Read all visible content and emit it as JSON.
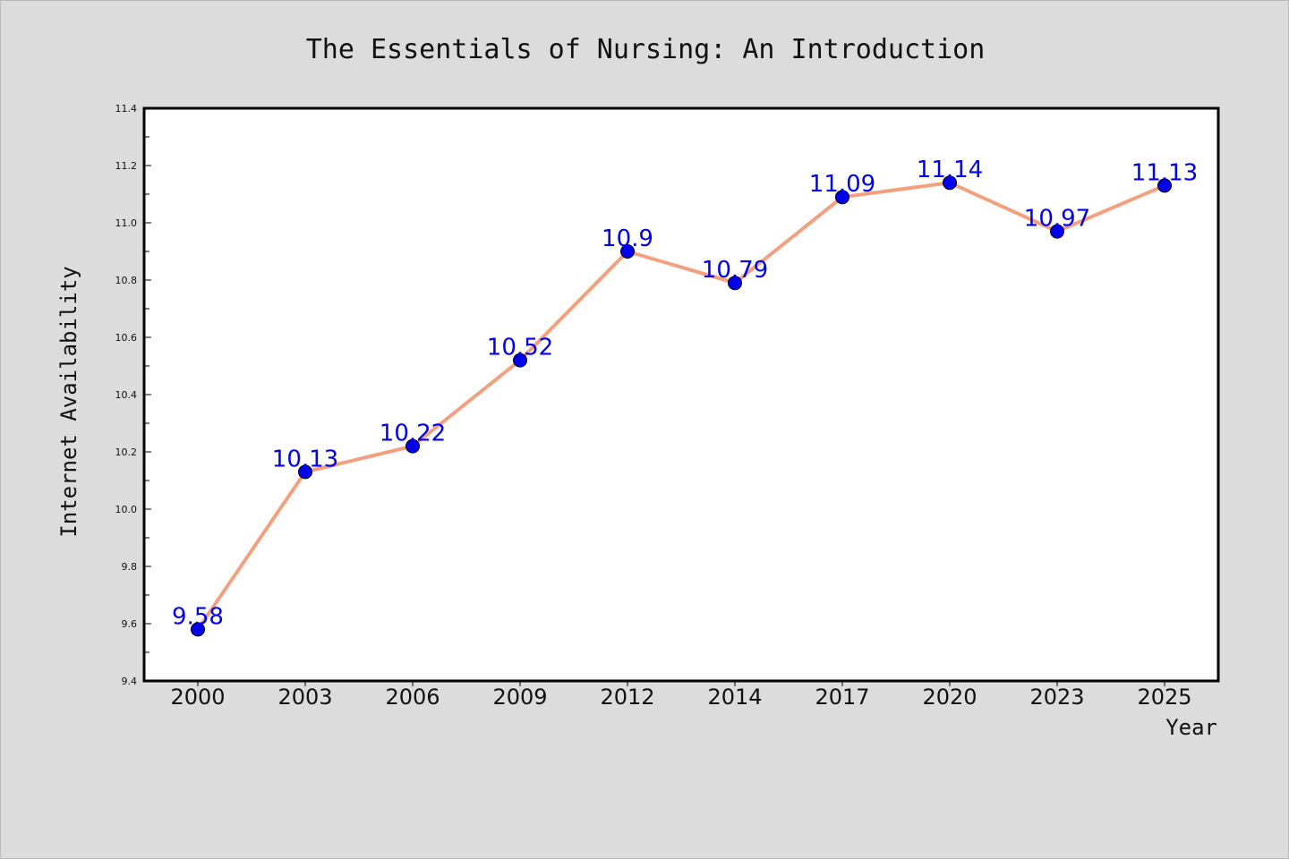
{
  "chart_data": {
    "type": "line",
    "title": "The Essentials of Nursing: An Introduction",
    "xlabel": "Year",
    "ylabel": "Internet Availability",
    "categories": [
      "2000",
      "2003",
      "2006",
      "2009",
      "2012",
      "2014",
      "2017",
      "2020",
      "2023",
      "2025"
    ],
    "series": [
      {
        "values": [
          9.58,
          10.13,
          10.22,
          10.52,
          10.9,
          10.79,
          11.09,
          11.14,
          10.97,
          11.13
        ]
      }
    ],
    "data_labels": [
      "9.58",
      "10.13",
      "10.22",
      "10.52",
      "10.9",
      "10.79",
      "11.09",
      "11.14",
      "10.97",
      "11.13"
    ],
    "ylim": [
      9.4,
      11.4
    ],
    "yticks": [
      "9.4",
      "9.6",
      "9.8",
      "10.0",
      "10.2",
      "10.4",
      "10.6",
      "10.8",
      "11.0",
      "11.2",
      "11.4"
    ],
    "grid": false,
    "legend": "none",
    "colors": {
      "line": "#f4a07f",
      "marker": "#0000ee",
      "data_label": "#0000ee",
      "plot_background": "#ffffff",
      "figure_background": "#dcdcdc"
    }
  }
}
